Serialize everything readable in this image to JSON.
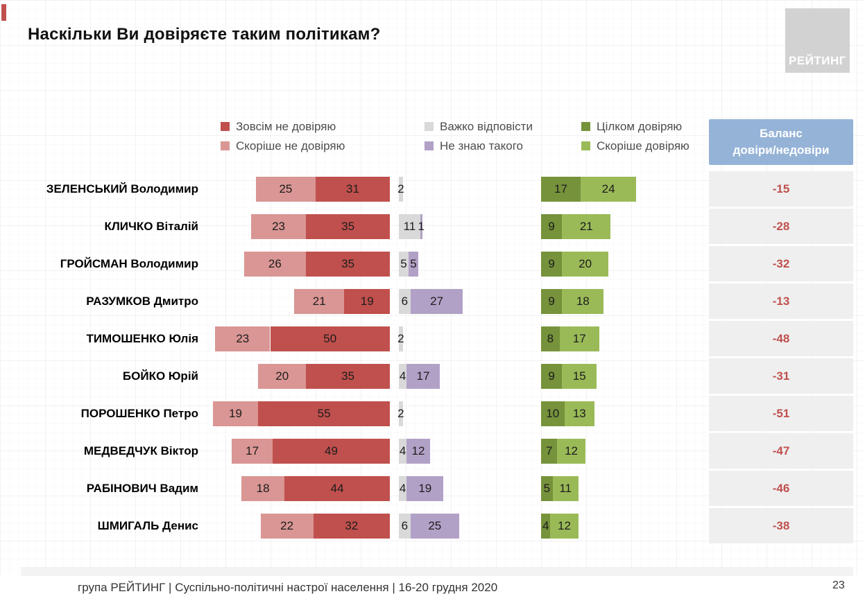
{
  "title": "Наскільки Ви довіряєте таким політикам?",
  "logo": {
    "text": "РЕЙТИНГ"
  },
  "legend": [
    {
      "label": "Зовсім не довіряю",
      "color": "#c0504d"
    },
    {
      "label": "Скоріше не довіряю",
      "color": "#d99694"
    },
    {
      "label": "Важко відповісти",
      "color": "#d9d9d9"
    },
    {
      "label": "Не знаю такого",
      "color": "#b2a1c7"
    },
    {
      "label": "Цілком довіряю",
      "color": "#76923b"
    },
    {
      "label": "Скоріше довіряю",
      "color": "#9aba58"
    }
  ],
  "balance_header": {
    "line1": "Баланс",
    "line2": "довіри/недовіри"
  },
  "footer": "група РЕЙТИНГ | Суспільно-політичні настрої населення | 16-20 грудня 2020",
  "page_number": "23",
  "colors": {
    "balance_text": "#c0504d",
    "balance_cell_bg": "#efefef",
    "balance_header_bg": "#95b3d7"
  },
  "chart_data": {
    "type": "bar",
    "orientation": "horizontal diverging stacked",
    "title": "Наскільки Ви довіряєте таким політикам?",
    "categories": [
      "ЗЕЛЕНСЬКИЙ Володимир",
      "КЛИЧКО Віталій",
      "ГРОЙСМАН Володимир",
      "РАЗУМКОВ Дмитро",
      "ТИМОШЕНКО Юлія",
      "БОЙКО Юрій",
      "ПОРОШЕНКО Петро",
      "МЕДВЕДЧУК Віктор",
      "РАБІНОВИЧ Вадим",
      "ШМИГАЛЬ Денис"
    ],
    "series": [
      {
        "name": "Скоріше не довіряю",
        "values": [
          25,
          23,
          26,
          21,
          23,
          20,
          19,
          17,
          18,
          22
        ]
      },
      {
        "name": "Зовсім не довіряю",
        "values": [
          31,
          35,
          35,
          19,
          50,
          35,
          55,
          49,
          44,
          32
        ]
      },
      {
        "name": "Важко відповісти",
        "values": [
          2,
          11,
          5,
          6,
          2,
          4,
          2,
          4,
          4,
          6
        ]
      },
      {
        "name": "Не знаю такого",
        "values": [
          0,
          1,
          5,
          27,
          0,
          17,
          0,
          12,
          19,
          25
        ]
      },
      {
        "name": "Цілком довіряю",
        "values": [
          17,
          9,
          9,
          9,
          8,
          9,
          10,
          7,
          5,
          4
        ]
      },
      {
        "name": "Скоріше довіряю",
        "values": [
          24,
          21,
          20,
          18,
          17,
          15,
          13,
          12,
          11,
          12
        ]
      }
    ],
    "balance": [
      -15,
      -28,
      -32,
      -13,
      -48,
      -31,
      -51,
      -47,
      -46,
      -38
    ],
    "legend_position": "top",
    "grid": "faint graph-paper background",
    "units": "percent"
  }
}
